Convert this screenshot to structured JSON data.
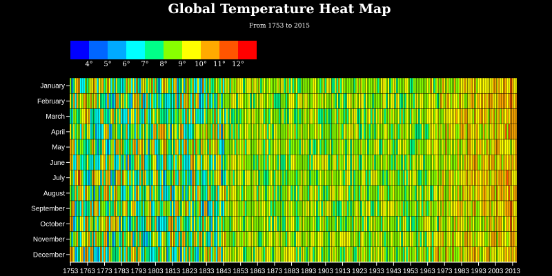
{
  "chart_data": {
    "type": "heatmap",
    "title": "Global Temperature Heat Map",
    "subtitle": "From 1753 to 2015",
    "x_range": [
      1753,
      2015
    ],
    "x_ticks": [
      1753,
      1763,
      1773,
      1783,
      1793,
      1803,
      1813,
      1823,
      1833,
      1843,
      1853,
      1863,
      1873,
      1883,
      1893,
      1903,
      1913,
      1923,
      1933,
      1943,
      1953,
      1963,
      1973,
      1983,
      1993,
      2003,
      2013
    ],
    "y_categories": [
      "January",
      "February",
      "March",
      "April",
      "May",
      "June",
      "July",
      "August",
      "September",
      "October",
      "November",
      "December"
    ],
    "legend": {
      "colors": [
        "#0000ff",
        "#0066ff",
        "#00aaff",
        "#00ffff",
        "#00ff88",
        "#88ff00",
        "#ffff00",
        "#ffaa00",
        "#ff5500",
        "#ff0000"
      ],
      "labels": [
        "4°",
        "5°",
        "6°",
        "7°",
        "8°",
        "9°",
        "10°",
        "11°",
        "12°"
      ]
    },
    "grid": false,
    "legend_position": "top-left"
  }
}
